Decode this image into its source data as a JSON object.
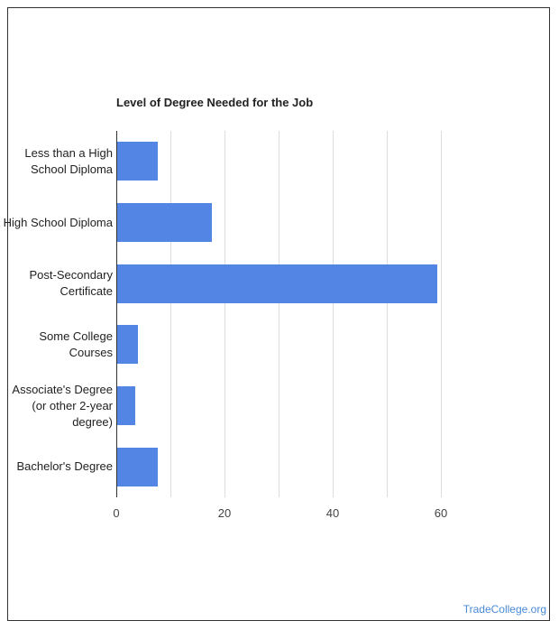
{
  "chart_data": {
    "type": "hbar",
    "title": "Level of Degree Needed for the Job",
    "categories": [
      "Less than a High School Diploma",
      "High School Diploma",
      "Post-Secondary Certificate",
      "Some College Courses",
      "Associate's Degree (or other 2-year degree)",
      "Bachelor's Degree"
    ],
    "values": [
      7.7,
      17.7,
      59.3,
      4.0,
      3.5,
      7.7
    ],
    "color": "#5386e4",
    "xlim": [
      0,
      60
    ],
    "xticks": [
      0,
      20,
      40,
      60
    ],
    "minor_xticks": [
      10,
      30,
      50
    ],
    "grid": true
  },
  "footer": "TradeCollege.org"
}
